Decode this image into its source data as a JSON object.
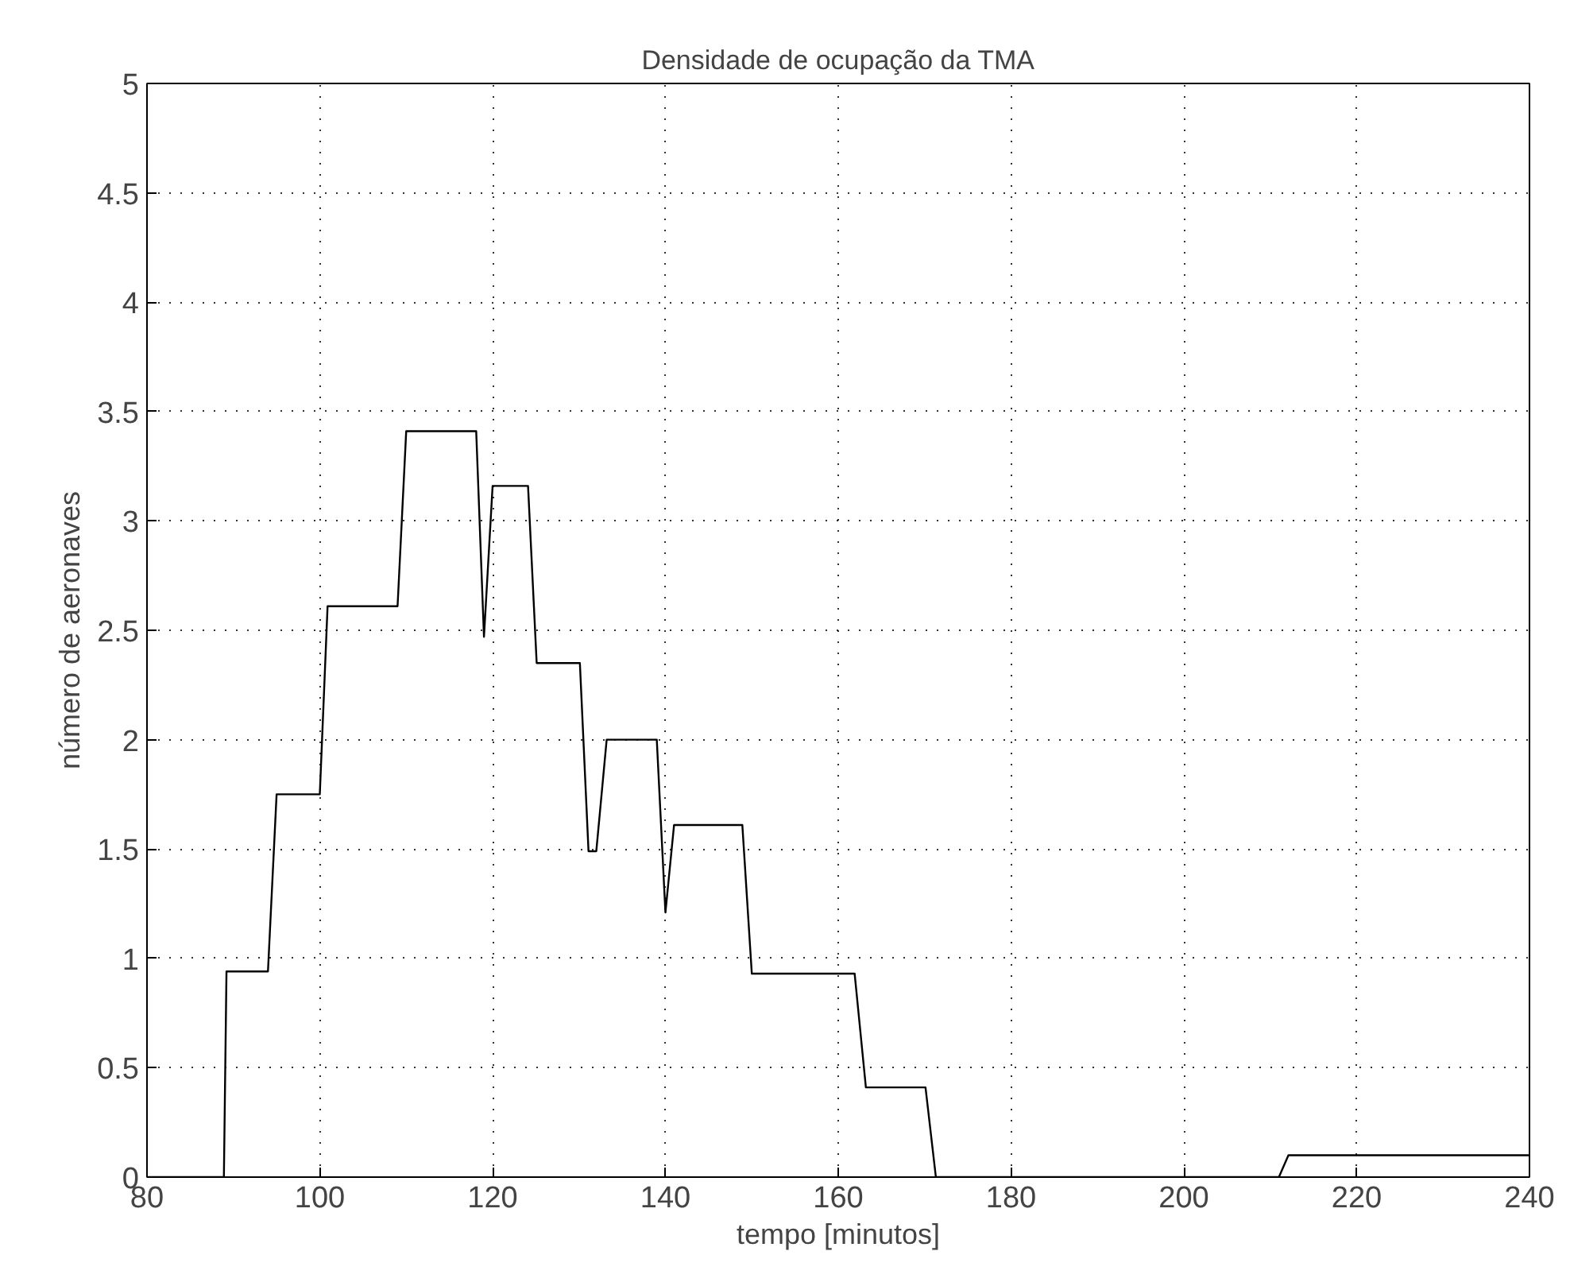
{
  "chart_data": {
    "type": "line",
    "title": "Densidade de ocupação da TMA",
    "xlabel": "tempo [minutos]",
    "ylabel": "número de aeronaves",
    "x": [
      80,
      88.9,
      89.2,
      94.0,
      95.0,
      100.0,
      100.9,
      109.0,
      110.0,
      118.1,
      119.0,
      120.0,
      124.1,
      125.1,
      130.1,
      131.1,
      132.0,
      133.2,
      139.0,
      140.0,
      141.0,
      148.9,
      150.0,
      161.9,
      163.2,
      170.1,
      171.3,
      211.0,
      212.1,
      240
    ],
    "series": [
      {
        "color": "#000000",
        "values": [
          0,
          0,
          0.94,
          0.94,
          1.75,
          1.75,
          2.61,
          2.61,
          3.41,
          3.41,
          2.47,
          3.16,
          3.16,
          2.35,
          2.35,
          1.49,
          1.49,
          2.0,
          2.0,
          1.21,
          1.61,
          1.61,
          0.93,
          0.93,
          0.41,
          0.41,
          0,
          0,
          0.1,
          0.1
        ]
      }
    ],
    "xlim": [
      80,
      240
    ],
    "ylim": [
      0,
      5
    ],
    "xticks": [
      80,
      100,
      120,
      140,
      160,
      180,
      200,
      220,
      240
    ],
    "yticks": [
      0,
      0.5,
      1,
      1.5,
      2,
      2.5,
      3,
      3.5,
      4,
      4.5,
      5
    ],
    "grid": true
  }
}
